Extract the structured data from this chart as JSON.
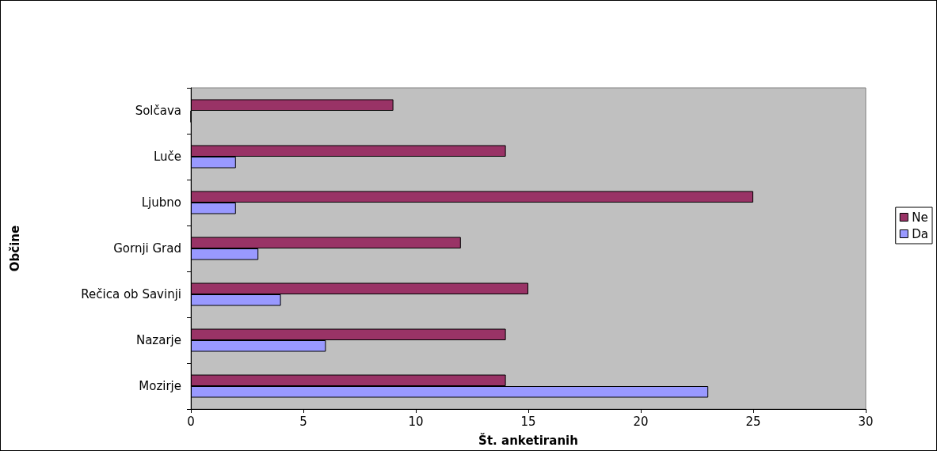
{
  "chart_data": {
    "type": "bar",
    "orientation": "horizontal",
    "xlabel": "Št. anketiranih",
    "ylabel": "Občine",
    "categories": [
      "Solčava",
      "Luče",
      "Ljubno",
      "Gornji Grad",
      "Rečica ob Savinji",
      "Nazarje",
      "Mozirje"
    ],
    "series": [
      {
        "name": "Ne",
        "color": "#993366",
        "values": [
          9,
          14,
          25,
          12,
          15,
          14,
          14
        ]
      },
      {
        "name": "Da",
        "color": "#9999ff",
        "values": [
          0,
          2,
          2,
          3,
          4,
          6,
          23
        ]
      }
    ],
    "xlim": [
      0,
      30
    ],
    "xticks": [
      0,
      5,
      10,
      15,
      20,
      25,
      30
    ],
    "grid": false,
    "legend": "right"
  }
}
